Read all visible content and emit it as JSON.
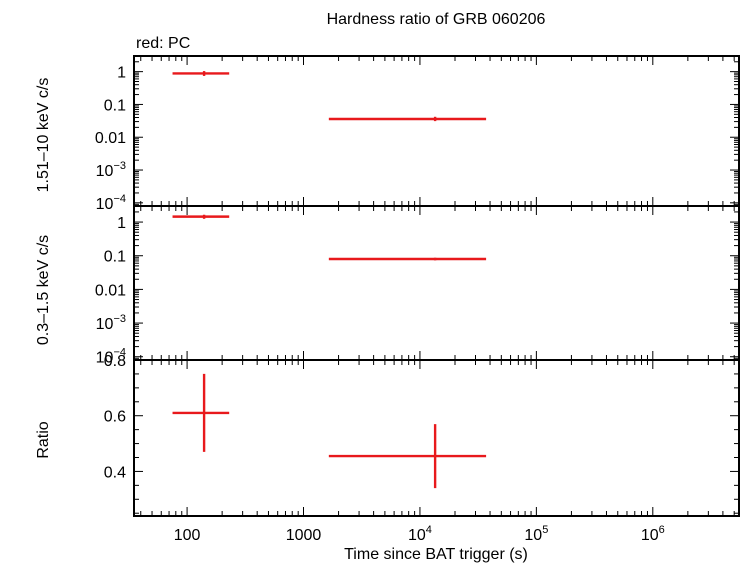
{
  "title": "Hardness ratio of GRB 060206",
  "legend": "red: PC",
  "xlabel": "Time since BAT trigger (s)",
  "colors": {
    "series": "#e8191c",
    "axes": "#000000"
  },
  "chart_data": [
    {
      "type": "scatter",
      "panel": "top",
      "ylabel": "1.51–10 keV c/s",
      "yscale": "log",
      "xscale": "log",
      "xlim": [
        35,
        5500000
      ],
      "ylim": [
        8e-05,
        3
      ],
      "yticks": [
        {
          "v": 1,
          "base": "1",
          "exp": ""
        },
        {
          "v": 0.1,
          "base": "0.1",
          "exp": ""
        },
        {
          "v": 0.01,
          "base": "0.01",
          "exp": ""
        },
        {
          "v": 0.001,
          "base": "10",
          "exp": "−3"
        },
        {
          "v": 0.0001,
          "base": "10",
          "exp": "−4"
        }
      ],
      "series": [
        {
          "points": [
            {
              "x": 140,
              "xlo": 75,
              "xhi": 230,
              "y": 0.88,
              "ylo": 0.74,
              "yhi": 1.04
            },
            {
              "x": 13500,
              "xlo": 1650,
              "xhi": 37000,
              "y": 0.036,
              "ylo": 0.031,
              "yhi": 0.042
            }
          ]
        }
      ]
    },
    {
      "type": "scatter",
      "panel": "middle",
      "ylabel": "0.3–1.5 keV c/s",
      "yscale": "log",
      "xscale": "log",
      "xlim": [
        35,
        5500000
      ],
      "ylim": [
        8e-05,
        3
      ],
      "yticks": [
        {
          "v": 1,
          "base": "1",
          "exp": ""
        },
        {
          "v": 0.1,
          "base": "0.1",
          "exp": ""
        },
        {
          "v": 0.01,
          "base": "0.01",
          "exp": ""
        },
        {
          "v": 0.001,
          "base": "10",
          "exp": "−3"
        },
        {
          "v": 0.0001,
          "base": "10",
          "exp": "−4"
        }
      ],
      "series": [
        {
          "points": [
            {
              "x": 140,
              "xlo": 75,
              "xhi": 230,
              "y": 1.45,
              "ylo": 1.25,
              "yhi": 1.65
            },
            {
              "x": 13500,
              "xlo": 1650,
              "xhi": 37000,
              "y": 0.08,
              "ylo": 0.073,
              "yhi": 0.087
            }
          ]
        }
      ]
    },
    {
      "type": "scatter",
      "panel": "bottom",
      "ylabel": "Ratio",
      "yscale": "linear",
      "xscale": "log",
      "xlim": [
        35,
        5500000
      ],
      "ylim": [
        0.24,
        0.8
      ],
      "yticks": [
        {
          "v": 0.8,
          "base": "0.8",
          "exp": ""
        },
        {
          "v": 0.6,
          "base": "0.6",
          "exp": ""
        },
        {
          "v": 0.4,
          "base": "0.4",
          "exp": ""
        }
      ],
      "xticks": [
        {
          "v": 100,
          "base": "100",
          "exp": ""
        },
        {
          "v": 1000,
          "base": "1000",
          "exp": ""
        },
        {
          "v": 10000,
          "base": "10",
          "exp": "4"
        },
        {
          "v": 100000,
          "base": "10",
          "exp": "5"
        },
        {
          "v": 1000000,
          "base": "10",
          "exp": "6"
        }
      ],
      "series": [
        {
          "points": [
            {
              "x": 140,
              "xlo": 75,
              "xhi": 230,
              "y": 0.61,
              "ylo": 0.47,
              "yhi": 0.75
            },
            {
              "x": 13500,
              "xlo": 1650,
              "xhi": 37000,
              "y": 0.455,
              "ylo": 0.34,
              "yhi": 0.57
            }
          ]
        }
      ]
    }
  ]
}
